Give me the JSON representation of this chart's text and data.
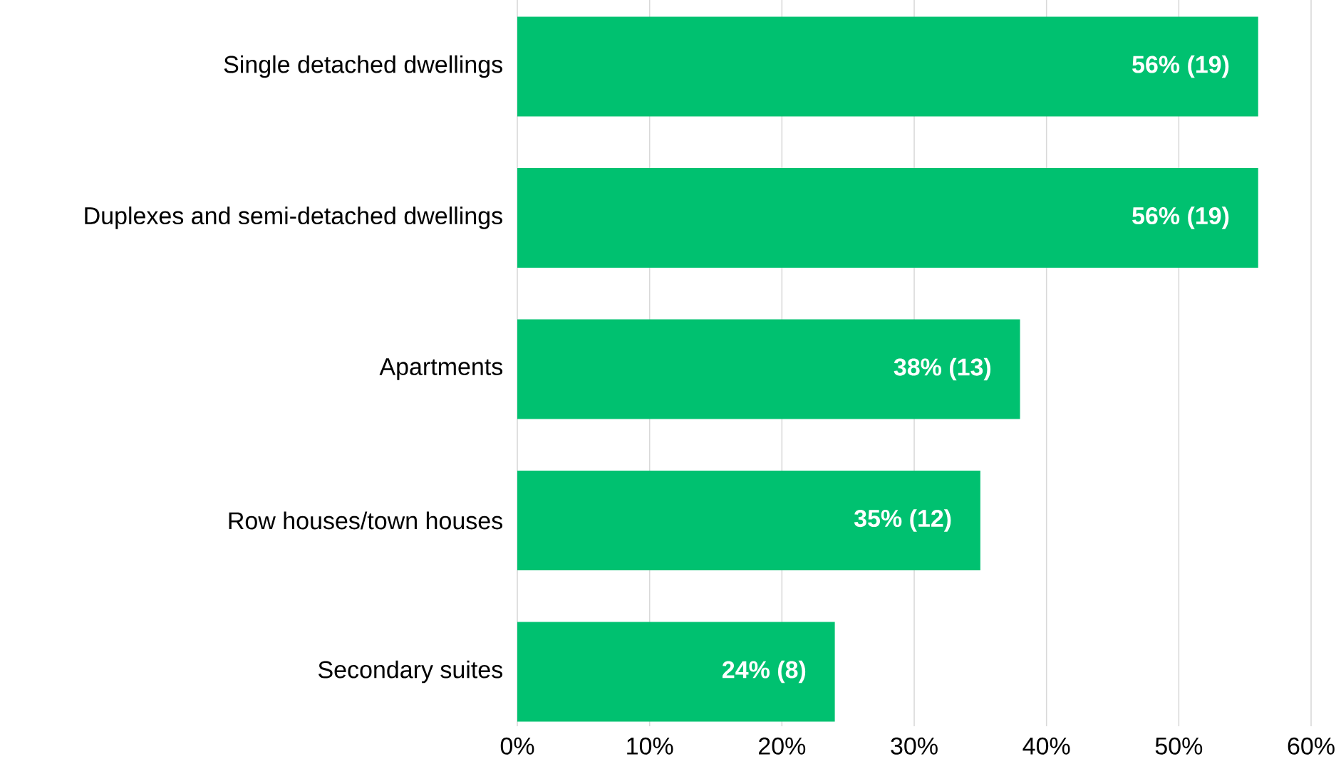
{
  "chart_data": {
    "type": "bar",
    "orientation": "horizontal",
    "categories": [
      "Single detached dwellings",
      "Duplexes and semi-detached dwellings",
      "Apartments",
      "Row houses/town houses",
      "Secondary suites"
    ],
    "values": [
      56,
      56,
      38,
      35,
      24
    ],
    "value_labels": [
      "56% (19)",
      "56% (19)",
      "38% (13)",
      "35% (12)",
      "24% (8)"
    ],
    "color": "#00c170",
    "xlim": [
      0,
      60
    ],
    "xticks": [
      {
        "value": 0,
        "label": "0%"
      },
      {
        "value": 10,
        "label": "10%"
      },
      {
        "value": 20,
        "label": "20%"
      },
      {
        "value": 30,
        "label": "30%"
      },
      {
        "value": 40,
        "label": "40%"
      },
      {
        "value": 50,
        "label": "50%"
      },
      {
        "value": 60,
        "label": "60%"
      }
    ],
    "grid": "x"
  }
}
